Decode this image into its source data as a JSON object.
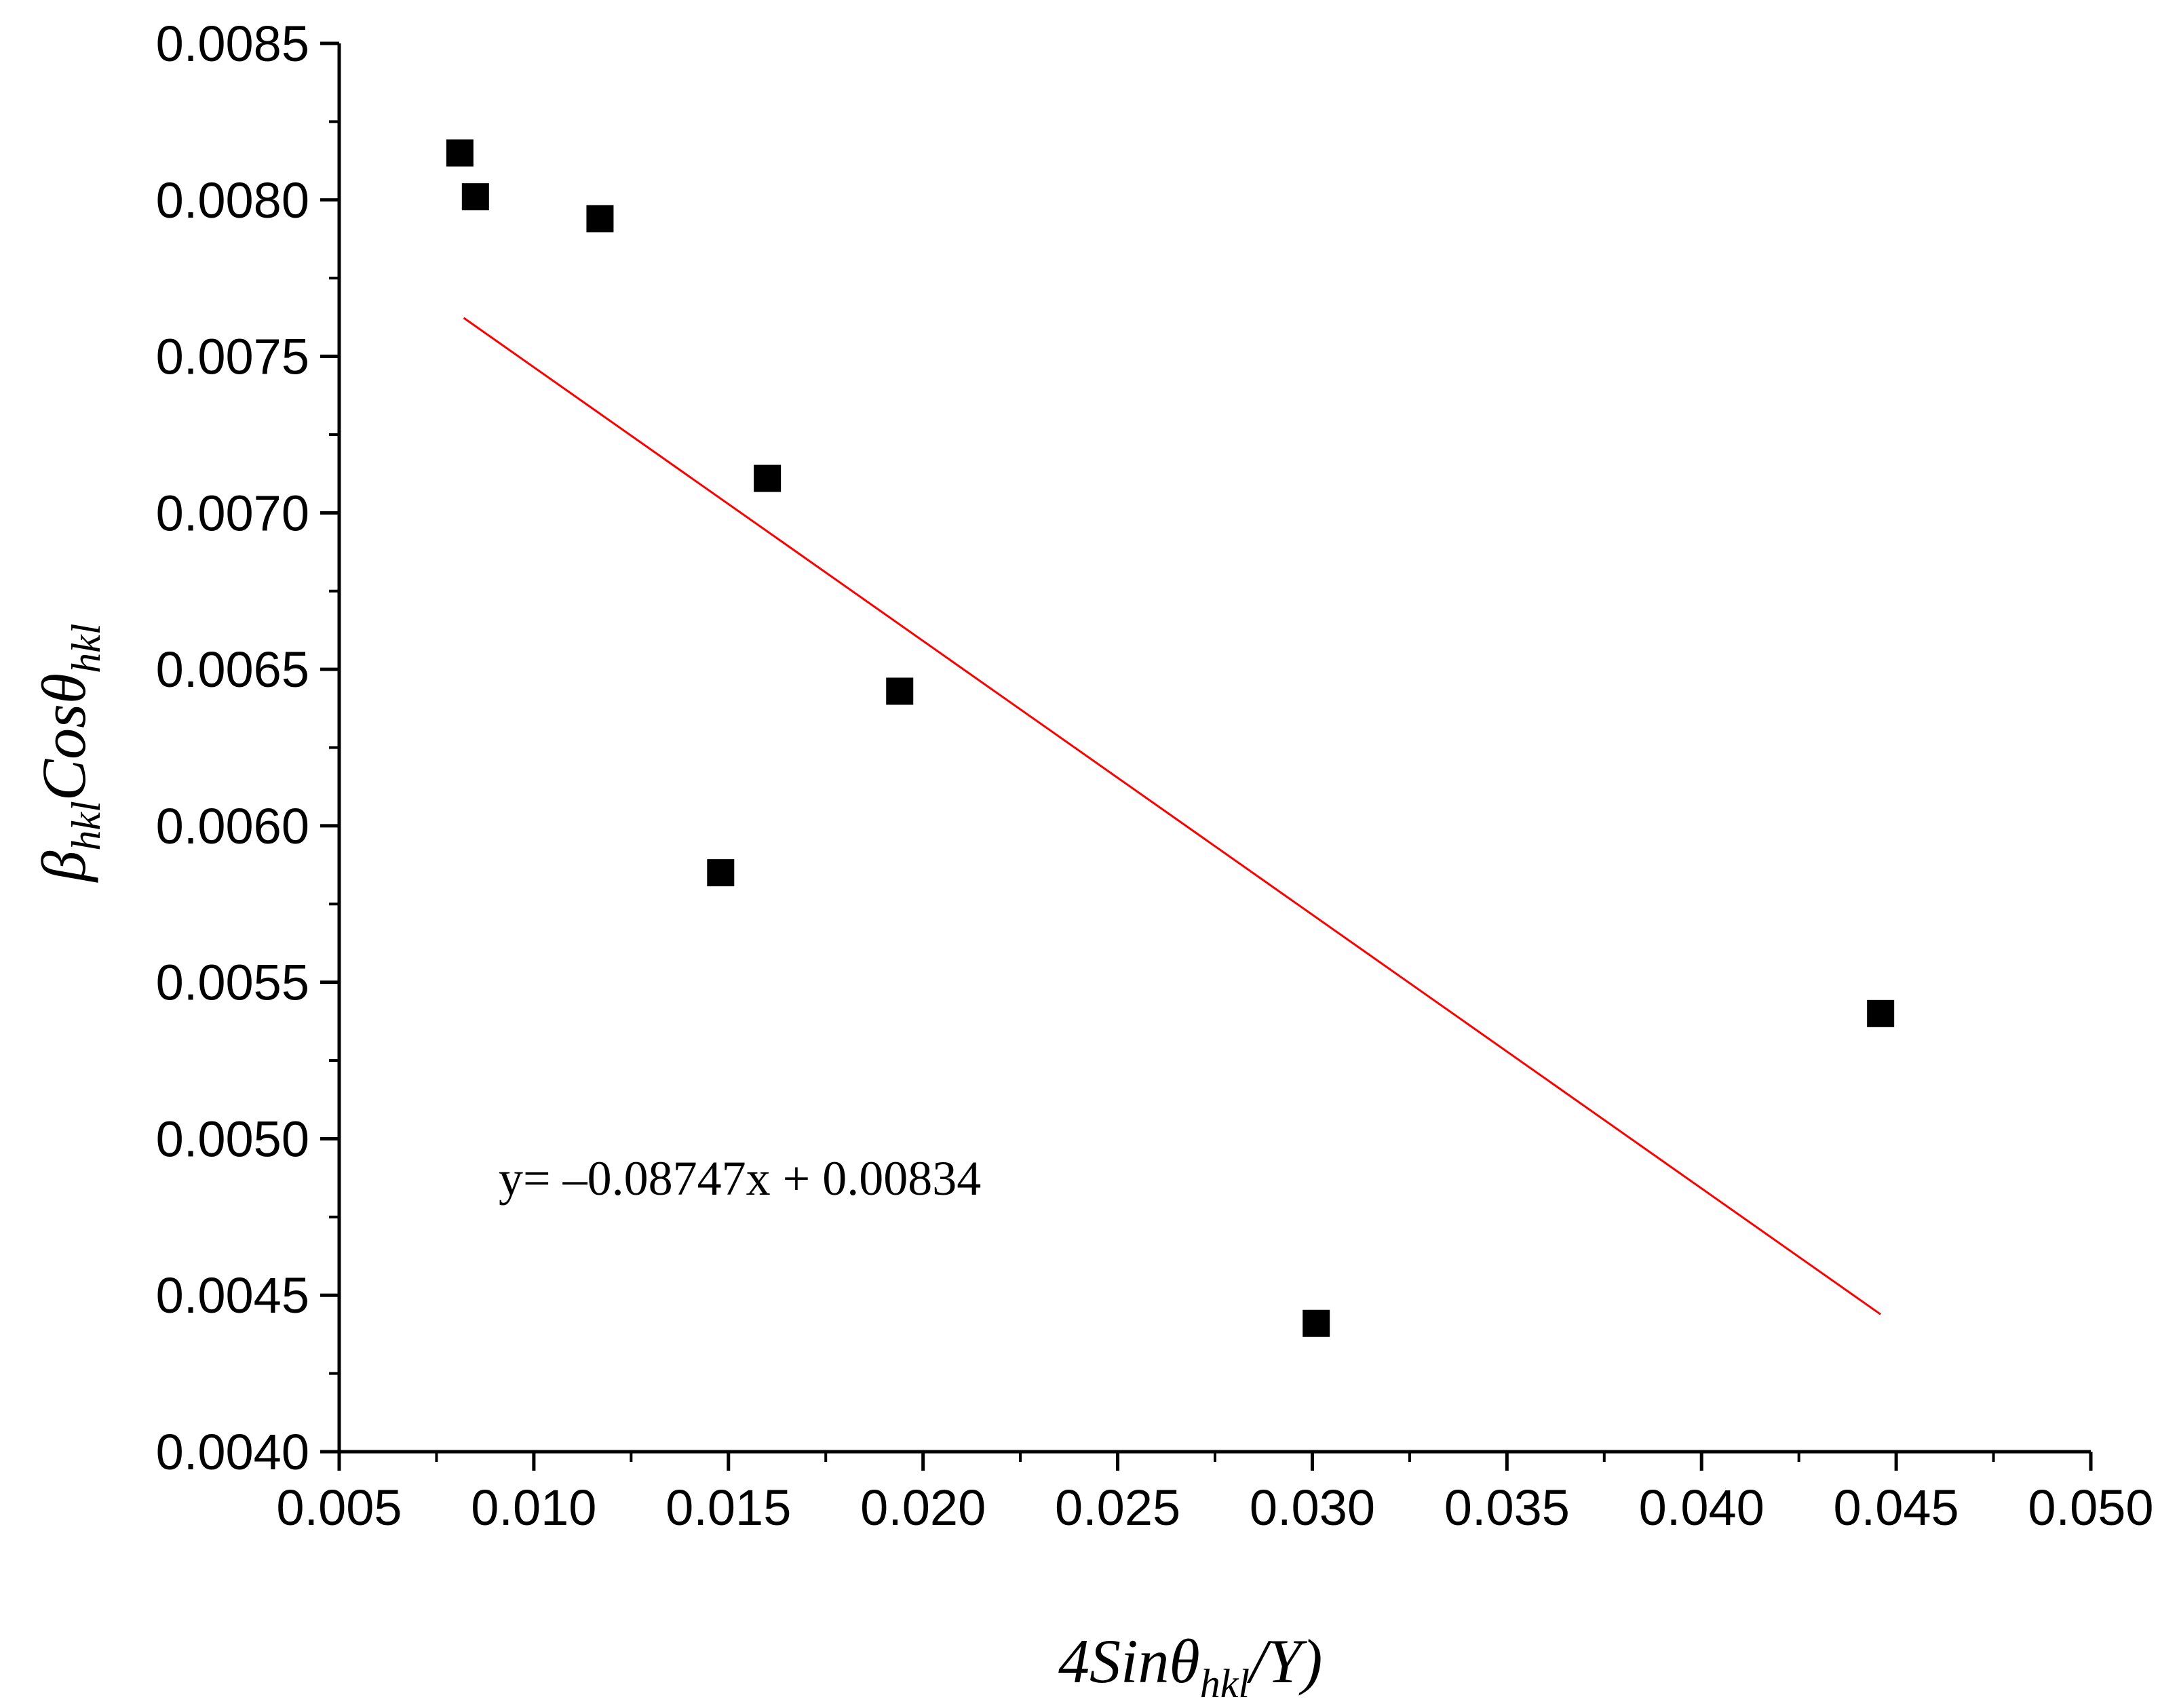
{
  "chart_data": {
    "type": "scatter",
    "title": "",
    "xlabel": {
      "prefix": "4Sinθ",
      "sub": "hkl",
      "suffix": "/Y)"
    },
    "ylabel": {
      "prefix": "β",
      "sub": "hkl",
      "middle": "Cosθ",
      "sub2": "hkl"
    },
    "xlim": [
      0.005,
      0.05
    ],
    "ylim": [
      0.004,
      0.0085
    ],
    "xticks": [
      "0.005",
      "0.010",
      "0.015",
      "0.020",
      "0.025",
      "0.030",
      "0.035",
      "0.040",
      "0.045",
      "0.050"
    ],
    "yticks": [
      "0.0040",
      "0.0045",
      "0.0050",
      "0.0055",
      "0.0060",
      "0.0065",
      "0.0070",
      "0.0075",
      "0.0080",
      "0.0085"
    ],
    "grid": false,
    "points": [
      {
        "x": 0.0081,
        "y": 0.00815
      },
      {
        "x": 0.0085,
        "y": 0.00801
      },
      {
        "x": 0.0117,
        "y": 0.00794
      },
      {
        "x": 0.016,
        "y": 0.00711
      },
      {
        "x": 0.0148,
        "y": 0.00585
      },
      {
        "x": 0.0194,
        "y": 0.00643
      },
      {
        "x": 0.0301,
        "y": 0.00441
      },
      {
        "x": 0.0446,
        "y": 0.0054
      }
    ],
    "marker_color": "#000000",
    "fit_line": {
      "x_start": 0.0082,
      "x_end": 0.0446,
      "slope": -0.08747,
      "intercept": 0.00834,
      "color": "#ff0000"
    },
    "annotation": "y= –0.08747x + 0.00834"
  }
}
